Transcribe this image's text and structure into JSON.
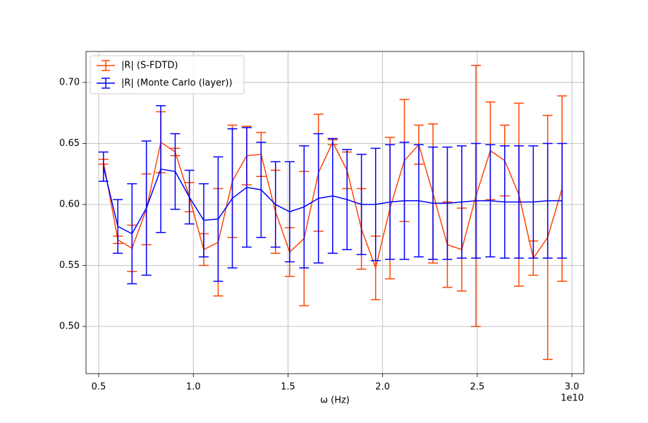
{
  "chart_data": {
    "type": "errorbar",
    "xlabel": "ω (Hz)",
    "x_offset_label": "1e10",
    "x": [
      0.525,
      0.601,
      0.676,
      0.752,
      0.828,
      0.904,
      0.979,
      1.055,
      1.131,
      1.206,
      1.282,
      1.358,
      1.434,
      1.509,
      1.585,
      1.661,
      1.736,
      1.812,
      1.888,
      1.963,
      2.039,
      2.115,
      2.191,
      2.266,
      2.342,
      2.418,
      2.493,
      2.569,
      2.645,
      2.72,
      2.796,
      2.872,
      2.948
    ],
    "series": [
      {
        "name": "|R| (S-FDTD)",
        "color": "#ff4500",
        "values": [
          0.635,
          0.571,
          0.564,
          0.596,
          0.651,
          0.643,
          0.606,
          0.563,
          0.569,
          0.619,
          0.64,
          0.641,
          0.594,
          0.561,
          0.572,
          0.626,
          0.651,
          0.628,
          0.58,
          0.548,
          0.597,
          0.636,
          0.649,
          0.609,
          0.567,
          0.563,
          0.607,
          0.644,
          0.636,
          0.608,
          0.556,
          0.573,
          0.613
        ],
        "errors": [
          0.002,
          0.003,
          0.019,
          0.029,
          0.025,
          0.003,
          0.012,
          0.013,
          0.044,
          0.046,
          0.024,
          0.018,
          0.034,
          0.02,
          0.055,
          0.048,
          0.002,
          0.015,
          0.033,
          0.026,
          0.058,
          0.05,
          0.016,
          0.057,
          0.035,
          0.034,
          0.107,
          0.04,
          0.029,
          0.075,
          0.014,
          0.1,
          0.076
        ]
      },
      {
        "name": "|R| (Monte Carlo (layer))",
        "color": "#0000ff",
        "values": [
          0.631,
          0.582,
          0.576,
          0.597,
          0.629,
          0.627,
          0.606,
          0.587,
          0.588,
          0.605,
          0.614,
          0.612,
          0.6,
          0.594,
          0.598,
          0.605,
          0.607,
          0.604,
          0.6,
          0.6,
          0.602,
          0.603,
          0.603,
          0.601,
          0.601,
          0.602,
          0.603,
          0.603,
          0.602,
          0.602,
          0.602,
          0.603,
          0.603
        ],
        "errors": [
          0.012,
          0.022,
          0.041,
          0.055,
          0.052,
          0.031,
          0.022,
          0.03,
          0.051,
          0.057,
          0.049,
          0.039,
          0.035,
          0.041,
          0.05,
          0.053,
          0.047,
          0.041,
          0.041,
          0.046,
          0.047,
          0.048,
          0.046,
          0.046,
          0.046,
          0.046,
          0.047,
          0.046,
          0.046,
          0.046,
          0.046,
          0.047,
          0.047
        ]
      }
    ],
    "xlim": [
      0.433,
      3.063
    ],
    "ylim": [
      0.4613,
      0.7254
    ],
    "xticks": [
      0.5,
      {
        "value": 1.0,
        "label": "1.0"
      },
      1.5,
      {
        "value": 2.0,
        "label": "2.0"
      },
      2.5,
      {
        "value": 3.0,
        "label": "3.0"
      }
    ],
    "yticks": [
      {
        "value": 0.5,
        "label": "0.50"
      },
      0.55,
      {
        "value": 0.6,
        "label": "0.60"
      },
      0.65,
      {
        "value": 0.7,
        "label": "0.70"
      }
    ],
    "grid": true,
    "legend": "upper left"
  }
}
